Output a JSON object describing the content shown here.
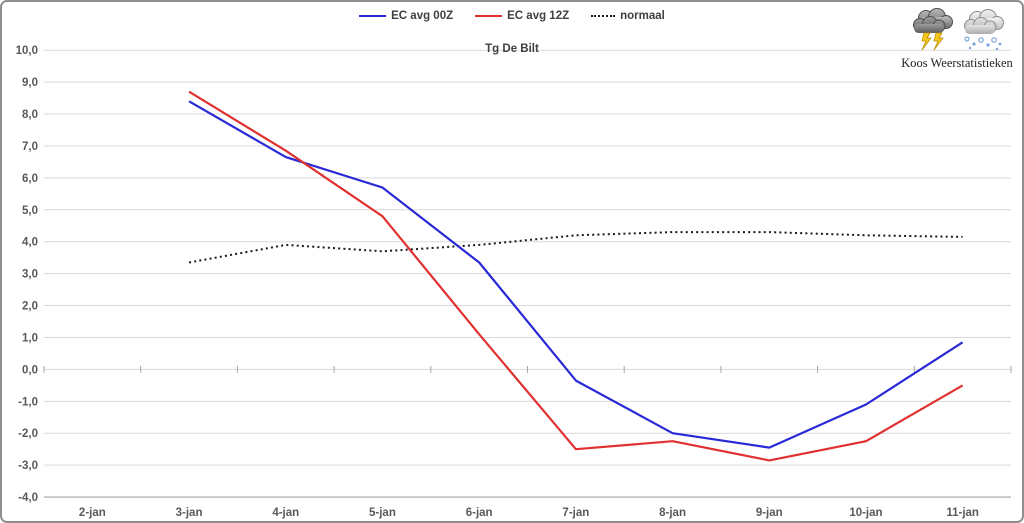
{
  "window": {
    "background": "#ffffff",
    "border_color": "#8f8f8f"
  },
  "attribution": "Koos Weerstatistieken",
  "icons": [
    {
      "name": "storm-cloud-lightning-icon"
    },
    {
      "name": "snow-cloud-icon"
    }
  ],
  "chart_data": {
    "type": "line",
    "title": "Tg De Bilt",
    "xlabel": "",
    "ylabel": "",
    "categories": [
      "2-jan",
      "3-jan",
      "4-jan",
      "5-jan",
      "6-jan",
      "7-jan",
      "8-jan",
      "9-jan",
      "10-jan",
      "11-jan"
    ],
    "series": [
      {
        "name": "EC avg 00Z",
        "color": "#2929d6",
        "style": "solid",
        "values": [
          null,
          8.4,
          6.65,
          5.7,
          3.35,
          -0.35,
          -2.0,
          -2.45,
          -1.1,
          0.85
        ]
      },
      {
        "name": "EC avg 12Z",
        "color": "#e03030",
        "style": "solid",
        "values": [
          null,
          8.7,
          6.85,
          4.8,
          1.1,
          -2.5,
          -2.25,
          -2.85,
          -2.25,
          -0.5
        ]
      },
      {
        "name": "normaal",
        "color": "#1a1a1a",
        "style": "dotted",
        "values": [
          null,
          3.35,
          3.9,
          3.7,
          3.9,
          4.2,
          4.3,
          4.3,
          4.2,
          4.15
        ]
      }
    ],
    "ylim": [
      -4,
      10
    ],
    "y_tick_step": 1,
    "y_ticks": [
      "10,0",
      "9,0",
      "8,0",
      "7,0",
      "6,0",
      "5,0",
      "4,0",
      "3,0",
      "2,0",
      "1,0",
      "0,0",
      "-1,0",
      "-2,0",
      "-3,0",
      "-4,0"
    ],
    "grid": true,
    "legend_position": "top-center",
    "decimal_separator": ",",
    "gridline_color": "#d9d9d9",
    "axis_line_color": "#b3b3b3",
    "tick_color": "#a6a6a6",
    "axis_label_color": "#595959"
  }
}
